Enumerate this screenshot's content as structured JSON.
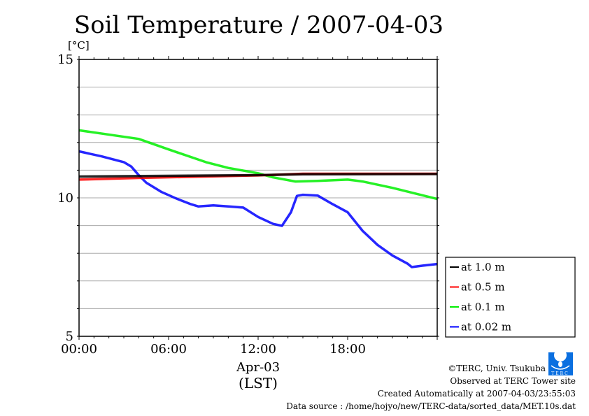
{
  "chart_data": {
    "type": "line",
    "title": "Soil Temperature / 2007-04-03",
    "ylabel": "[°C]",
    "ylim": [
      5,
      15
    ],
    "yticks": [
      "5",
      "10",
      "15"
    ],
    "xlim": [
      0,
      24
    ],
    "xticks": [
      "00:00",
      "06:00",
      "12:00",
      "18:00"
    ],
    "xlabel_date": "Apr-03",
    "xlabel_zone": "(LST)",
    "grid": true,
    "legend_position": "right-bottom outside",
    "series": [
      {
        "name": "at 1.0 m",
        "color": "#000000",
        "x": [
          0,
          12,
          15,
          24
        ],
        "y": [
          10.77,
          10.82,
          10.85,
          10.86
        ]
      },
      {
        "name": "at 0.5 m",
        "color": "#ff0000",
        "x": [
          0,
          4,
          12,
          15,
          24
        ],
        "y": [
          10.66,
          10.72,
          10.81,
          10.87,
          10.87
        ]
      },
      {
        "name": "at 0.1 m",
        "color": "#00ee00",
        "x": [
          0,
          4,
          6,
          8.5,
          10,
          12,
          13,
          14.5,
          16,
          18,
          19,
          21,
          24
        ],
        "y": [
          12.44,
          12.13,
          11.75,
          11.29,
          11.08,
          10.89,
          10.74,
          10.59,
          10.61,
          10.66,
          10.59,
          10.36,
          9.96
        ]
      },
      {
        "name": "at 0.02 m",
        "color": "#0000ff",
        "x": [
          0,
          1.5,
          3,
          3.5,
          4,
          4.5,
          5.5,
          6.5,
          7.5,
          8,
          9,
          10,
          11,
          12,
          13,
          13.6,
          14.2,
          14.6,
          15,
          16,
          17,
          18,
          19,
          20,
          21,
          22,
          22.3,
          23,
          24
        ],
        "y": [
          11.68,
          11.5,
          11.29,
          11.13,
          10.82,
          10.55,
          10.22,
          9.98,
          9.77,
          9.69,
          9.73,
          9.69,
          9.65,
          9.31,
          9.06,
          8.99,
          9.48,
          10.07,
          10.11,
          10.08,
          9.77,
          9.48,
          8.81,
          8.3,
          7.92,
          7.63,
          7.5,
          7.55,
          7.61
        ]
      }
    ]
  },
  "footer": {
    "copyright": "©TERC, Univ. Tsukuba",
    "logo_text": "TERC",
    "observed": "Observed at TERC Tower site",
    "created": "Created Automatically at 2007-04-03/23:55:03",
    "source": "Data source : /home/hojyo/new/TERC-data/sorted_data/MET.10s.dat"
  }
}
